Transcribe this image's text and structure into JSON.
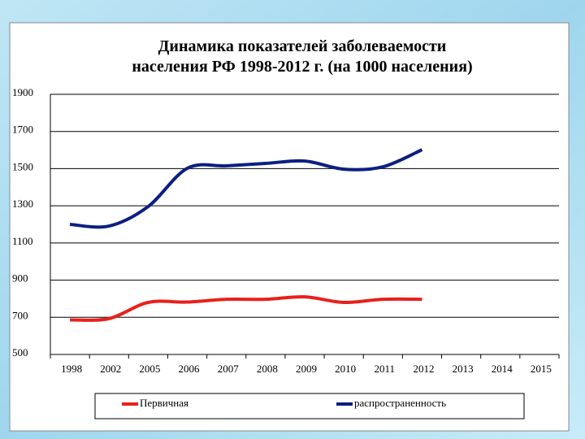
{
  "chart_data": {
    "type": "line",
    "title": [
      "Динамика показателей заболеваемости",
      "населения РФ 1998-2012 г. (на 1000 населения)"
    ],
    "categories": [
      "1998",
      "2002",
      "2005",
      "2006",
      "2007",
      "2008",
      "2009",
      "2010",
      "2011",
      "2012",
      "2013",
      "2014",
      "2015"
    ],
    "series": [
      {
        "name": "Первичная",
        "color": "#e8201c",
        "values": [
          686,
          693,
          780,
          782,
          797,
          797,
          810,
          780,
          797,
          797,
          null,
          null,
          null
        ]
      },
      {
        "name": "распространенность",
        "color": "#0d1f80",
        "values": [
          1200,
          1191,
          1296,
          1502,
          1515,
          1528,
          1541,
          1497,
          1510,
          1602,
          null,
          null,
          null
        ]
      }
    ],
    "ylim": [
      500,
      1900
    ],
    "yticks": [
      500,
      700,
      900,
      1100,
      1300,
      1500,
      1700,
      1900
    ],
    "grid": true,
    "legend": "bottom"
  }
}
